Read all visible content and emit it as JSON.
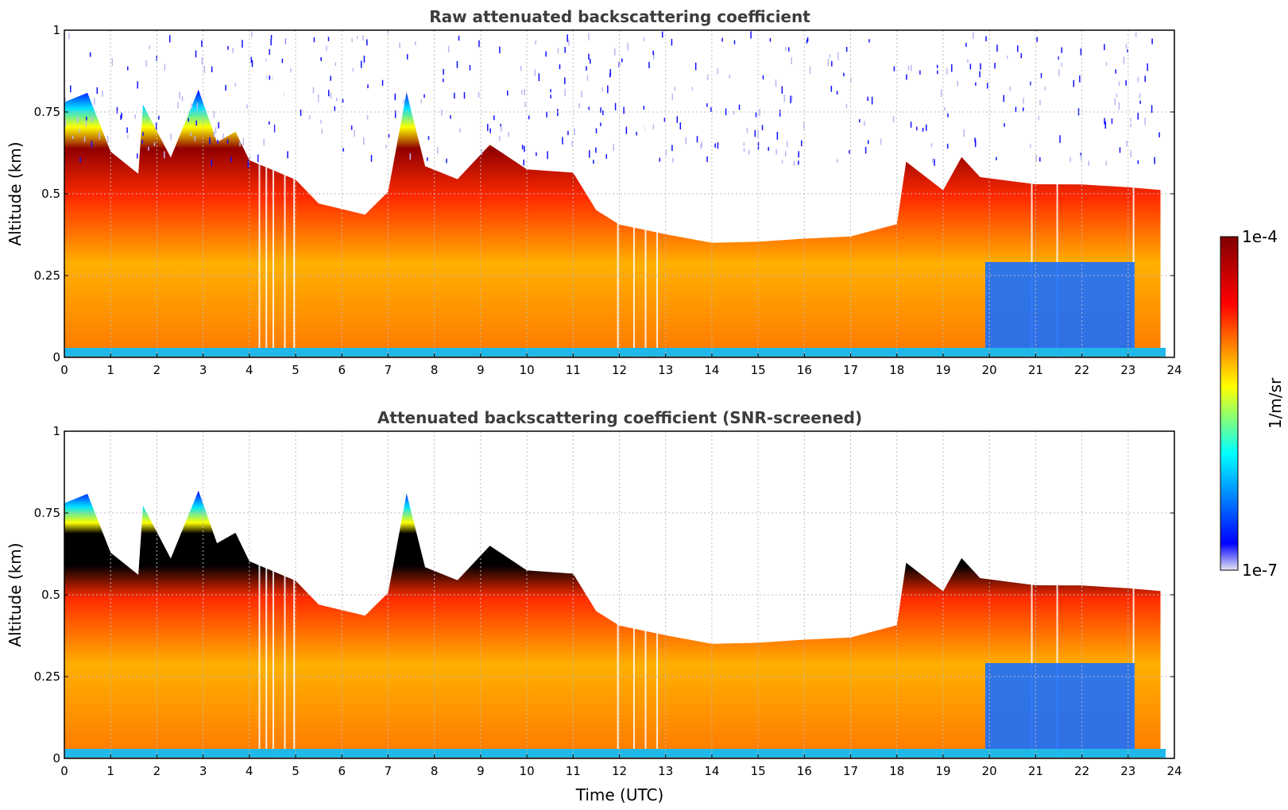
{
  "chart_data": [
    {
      "type": "heatmap",
      "title": "Raw attenuated backscattering coefficient",
      "xlabel": "",
      "ylabel": "Altitude (km)",
      "xlim": [
        0,
        24
      ],
      "ylim": [
        0,
        1
      ],
      "xticks": [
        "0",
        "1",
        "2",
        "3",
        "4",
        "5",
        "6",
        "7",
        "8",
        "9",
        "10",
        "11",
        "12",
        "13",
        "14",
        "15",
        "16",
        "17",
        "18",
        "19",
        "20",
        "21",
        "22",
        "23",
        "24"
      ],
      "yticks": [
        "0",
        "0.25",
        "0.5",
        "0.75",
        "1"
      ],
      "grid": true,
      "screened": false,
      "boundary_layer_top_km": {
        "t": [
          0,
          0.5,
          1.0,
          1.6,
          1.7,
          2.3,
          2.9,
          3.3,
          3.7,
          4.0,
          5.0,
          5.5,
          6.5,
          7.0,
          7.4,
          7.8,
          8.5,
          9.2,
          10.0,
          11.0,
          11.5,
          12.0,
          13.0,
          14.0,
          15.0,
          16.0,
          17.0,
          18.0,
          18.2,
          19.0,
          19.4,
          19.8,
          21.0,
          22.0,
          23.0,
          23.7
        ],
        "z": [
          0.78,
          0.8,
          0.62,
          0.56,
          0.78,
          0.62,
          0.82,
          0.65,
          0.68,
          0.6,
          0.55,
          0.48,
          0.44,
          0.5,
          0.8,
          0.58,
          0.55,
          0.66,
          0.58,
          0.56,
          0.44,
          0.4,
          0.38,
          0.36,
          0.36,
          0.36,
          0.36,
          0.4,
          0.6,
          0.52,
          0.62,
          0.55,
          0.52,
          0.52,
          0.52,
          0.52
        ]
      }
    },
    {
      "type": "heatmap",
      "title": "Attenuated backscattering coefficient (SNR-screened)",
      "xlabel": "Time (UTC)",
      "ylabel": "Altitude (km)",
      "xlim": [
        0,
        24
      ],
      "ylim": [
        0,
        1
      ],
      "xticks": [
        "0",
        "1",
        "2",
        "3",
        "4",
        "5",
        "6",
        "7",
        "8",
        "9",
        "10",
        "11",
        "12",
        "13",
        "14",
        "15",
        "16",
        "17",
        "18",
        "19",
        "20",
        "21",
        "22",
        "23",
        "24"
      ],
      "yticks": [
        "0",
        "0.25",
        "0.5",
        "0.75",
        "1"
      ],
      "grid": true,
      "screened": true
    }
  ],
  "colorbar": {
    "label": "1/m/sr",
    "max_label": "1e-4",
    "min_label": "1e-7",
    "colors": [
      "#e6e6f5",
      "#0000ff",
      "#00ffff",
      "#ffff00",
      "#ff0000",
      "#800000"
    ]
  }
}
